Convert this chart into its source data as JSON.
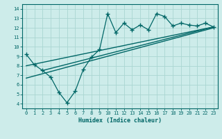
{
  "xlabel": "Humidex (Indice chaleur)",
  "bg_color": "#cdecea",
  "line_color": "#006666",
  "grid_color": "#aad6d2",
  "xlim": [
    -0.5,
    23.5
  ],
  "ylim": [
    3.5,
    14.5
  ],
  "xticks": [
    0,
    1,
    2,
    3,
    4,
    5,
    6,
    7,
    8,
    9,
    10,
    11,
    12,
    13,
    14,
    15,
    16,
    17,
    18,
    19,
    20,
    21,
    22,
    23
  ],
  "yticks": [
    4,
    5,
    6,
    7,
    8,
    9,
    10,
    11,
    12,
    13,
    14
  ],
  "main_line_x": [
    0,
    1,
    2,
    3,
    4,
    5,
    6,
    7,
    8,
    9,
    10,
    11,
    12,
    13,
    14,
    15,
    16,
    17,
    18,
    19,
    20,
    21,
    22,
    23
  ],
  "main_line_y": [
    9.2,
    8.1,
    7.5,
    6.8,
    5.2,
    4.1,
    5.3,
    7.6,
    8.9,
    9.7,
    13.5,
    11.5,
    12.5,
    11.8,
    12.3,
    11.8,
    13.5,
    13.2,
    12.2,
    12.5,
    12.3,
    12.2,
    12.5,
    12.1
  ],
  "line1_x": [
    0,
    23
  ],
  "line1_y": [
    8.0,
    12.1
  ],
  "line2_x": [
    0,
    23
  ],
  "line2_y": [
    6.7,
    12.0
  ],
  "line3_x": [
    2,
    23
  ],
  "line3_y": [
    7.5,
    12.1
  ],
  "xlabel_fontsize": 6.0,
  "tick_fontsize": 5.0
}
